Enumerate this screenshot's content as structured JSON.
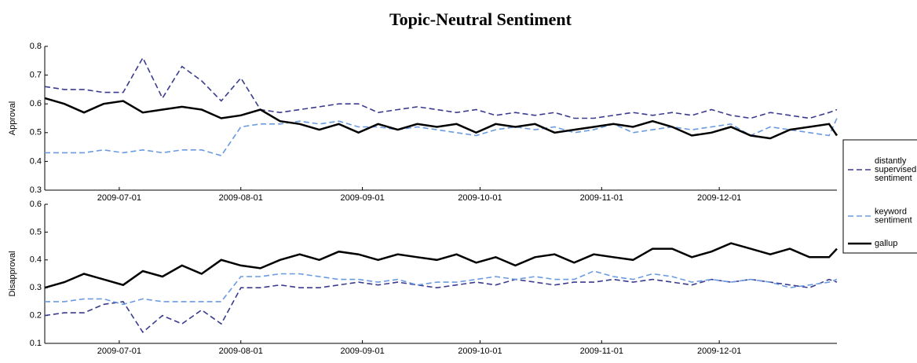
{
  "chart_data": [
    {
      "type": "line",
      "title": "Topic-Neutral Sentiment",
      "y_label": "Approval",
      "legend": "right",
      "x": [
        "2009-06-12",
        "2009-06-17",
        "2009-06-22",
        "2009-06-27",
        "2009-07-02",
        "2009-07-07",
        "2009-07-12",
        "2009-07-17",
        "2009-07-22",
        "2009-07-27",
        "2009-08-01",
        "2009-08-06",
        "2009-08-11",
        "2009-08-16",
        "2009-08-21",
        "2009-08-26",
        "2009-08-31",
        "2009-09-05",
        "2009-09-10",
        "2009-09-15",
        "2009-09-20",
        "2009-09-25",
        "2009-09-30",
        "2009-10-05",
        "2009-10-10",
        "2009-10-15",
        "2009-10-20",
        "2009-10-25",
        "2009-10-30",
        "2009-11-04",
        "2009-11-09",
        "2009-11-14",
        "2009-11-19",
        "2009-11-24",
        "2009-11-29",
        "2009-12-04",
        "2009-12-09",
        "2009-12-14",
        "2009-12-19",
        "2009-12-24",
        "2009-12-29",
        "2009-12-31"
      ],
      "xlim": [
        "2009-06-12",
        "2009-12-31"
      ],
      "xticks": [
        "2009-07-01",
        "2009-08-01",
        "2009-09-01",
        "2009-10-01",
        "2009-11-01",
        "2009-12-01"
      ],
      "ylim": [
        0.3,
        0.8
      ],
      "yticks": [
        0.3,
        0.4,
        0.5,
        0.6,
        0.7,
        0.8
      ],
      "series": [
        {
          "name": "distantly supervised sentiment",
          "color": "#3b3b8f",
          "linestyle": "dashed",
          "values": [
            0.66,
            0.65,
            0.65,
            0.64,
            0.64,
            0.76,
            0.62,
            0.73,
            0.68,
            0.61,
            0.69,
            0.58,
            0.57,
            0.58,
            0.59,
            0.6,
            0.6,
            0.57,
            0.58,
            0.59,
            0.58,
            0.57,
            0.58,
            0.56,
            0.57,
            0.56,
            0.57,
            0.55,
            0.55,
            0.56,
            0.57,
            0.56,
            0.57,
            0.56,
            0.58,
            0.56,
            0.55,
            0.57,
            0.56,
            0.55,
            0.57,
            0.58
          ]
        },
        {
          "name": "keyword sentiment",
          "color": "#6a9be0",
          "linestyle": "dashed",
          "values": [
            0.43,
            0.43,
            0.43,
            0.44,
            0.43,
            0.44,
            0.43,
            0.44,
            0.44,
            0.42,
            0.52,
            0.53,
            0.53,
            0.54,
            0.53,
            0.54,
            0.52,
            0.52,
            0.51,
            0.52,
            0.51,
            0.5,
            0.49,
            0.51,
            0.52,
            0.51,
            0.52,
            0.5,
            0.51,
            0.53,
            0.5,
            0.51,
            0.52,
            0.51,
            0.52,
            0.53,
            0.49,
            0.52,
            0.51,
            0.5,
            0.49,
            0.55
          ]
        },
        {
          "name": "gallup",
          "color": "#000000",
          "linestyle": "solid",
          "values": [
            0.62,
            0.6,
            0.57,
            0.6,
            0.61,
            0.57,
            0.58,
            0.59,
            0.58,
            0.55,
            0.56,
            0.58,
            0.54,
            0.53,
            0.51,
            0.53,
            0.5,
            0.53,
            0.51,
            0.53,
            0.52,
            0.53,
            0.5,
            0.53,
            0.52,
            0.53,
            0.5,
            0.51,
            0.52,
            0.53,
            0.52,
            0.54,
            0.52,
            0.49,
            0.5,
            0.52,
            0.49,
            0.48,
            0.51,
            0.52,
            0.53,
            0.49
          ]
        }
      ]
    },
    {
      "type": "line",
      "y_label": "Disapproval",
      "x": [
        "2009-06-12",
        "2009-06-17",
        "2009-06-22",
        "2009-06-27",
        "2009-07-02",
        "2009-07-07",
        "2009-07-12",
        "2009-07-17",
        "2009-07-22",
        "2009-07-27",
        "2009-08-01",
        "2009-08-06",
        "2009-08-11",
        "2009-08-16",
        "2009-08-21",
        "2009-08-26",
        "2009-08-31",
        "2009-09-05",
        "2009-09-10",
        "2009-09-15",
        "2009-09-20",
        "2009-09-25",
        "2009-09-30",
        "2009-10-05",
        "2009-10-10",
        "2009-10-15",
        "2009-10-20",
        "2009-10-25",
        "2009-10-30",
        "2009-11-04",
        "2009-11-09",
        "2009-11-14",
        "2009-11-19",
        "2009-11-24",
        "2009-11-29",
        "2009-12-04",
        "2009-12-09",
        "2009-12-14",
        "2009-12-19",
        "2009-12-24",
        "2009-12-29",
        "2009-12-31"
      ],
      "xlim": [
        "2009-06-12",
        "2009-12-31"
      ],
      "xticks": [
        "2009-07-01",
        "2009-08-01",
        "2009-09-01",
        "2009-10-01",
        "2009-11-01",
        "2009-12-01"
      ],
      "ylim": [
        0.1,
        0.6
      ],
      "yticks": [
        0.1,
        0.2,
        0.3,
        0.4,
        0.5,
        0.6
      ],
      "series": [
        {
          "color": "#3b3b8f",
          "linestyle": "dashed",
          "values": [
            0.2,
            0.21,
            0.21,
            0.24,
            0.25,
            0.14,
            0.2,
            0.17,
            0.22,
            0.17,
            0.3,
            0.3,
            0.31,
            0.3,
            0.3,
            0.31,
            0.32,
            0.31,
            0.32,
            0.31,
            0.3,
            0.31,
            0.32,
            0.31,
            0.33,
            0.32,
            0.31,
            0.32,
            0.32,
            0.33,
            0.32,
            0.33,
            0.32,
            0.31,
            0.33,
            0.32,
            0.33,
            0.32,
            0.31,
            0.3,
            0.33,
            0.32
          ]
        },
        {
          "color": "#6a9be0",
          "linestyle": "dashed",
          "values": [
            0.25,
            0.25,
            0.26,
            0.26,
            0.24,
            0.26,
            0.25,
            0.25,
            0.25,
            0.25,
            0.34,
            0.34,
            0.35,
            0.35,
            0.34,
            0.33,
            0.33,
            0.32,
            0.33,
            0.31,
            0.32,
            0.32,
            0.33,
            0.34,
            0.33,
            0.34,
            0.33,
            0.33,
            0.36,
            0.34,
            0.33,
            0.35,
            0.34,
            0.32,
            0.33,
            0.32,
            0.33,
            0.32,
            0.3,
            0.31,
            0.32,
            0.33
          ]
        },
        {
          "color": "#000000",
          "linestyle": "solid",
          "values": [
            0.3,
            0.32,
            0.35,
            0.33,
            0.31,
            0.36,
            0.34,
            0.38,
            0.35,
            0.4,
            0.38,
            0.37,
            0.4,
            0.42,
            0.4,
            0.43,
            0.42,
            0.4,
            0.42,
            0.41,
            0.4,
            0.42,
            0.39,
            0.41,
            0.38,
            0.41,
            0.42,
            0.39,
            0.42,
            0.41,
            0.4,
            0.44,
            0.44,
            0.41,
            0.43,
            0.46,
            0.44,
            0.42,
            0.44,
            0.41,
            0.41,
            0.44
          ]
        }
      ]
    }
  ]
}
